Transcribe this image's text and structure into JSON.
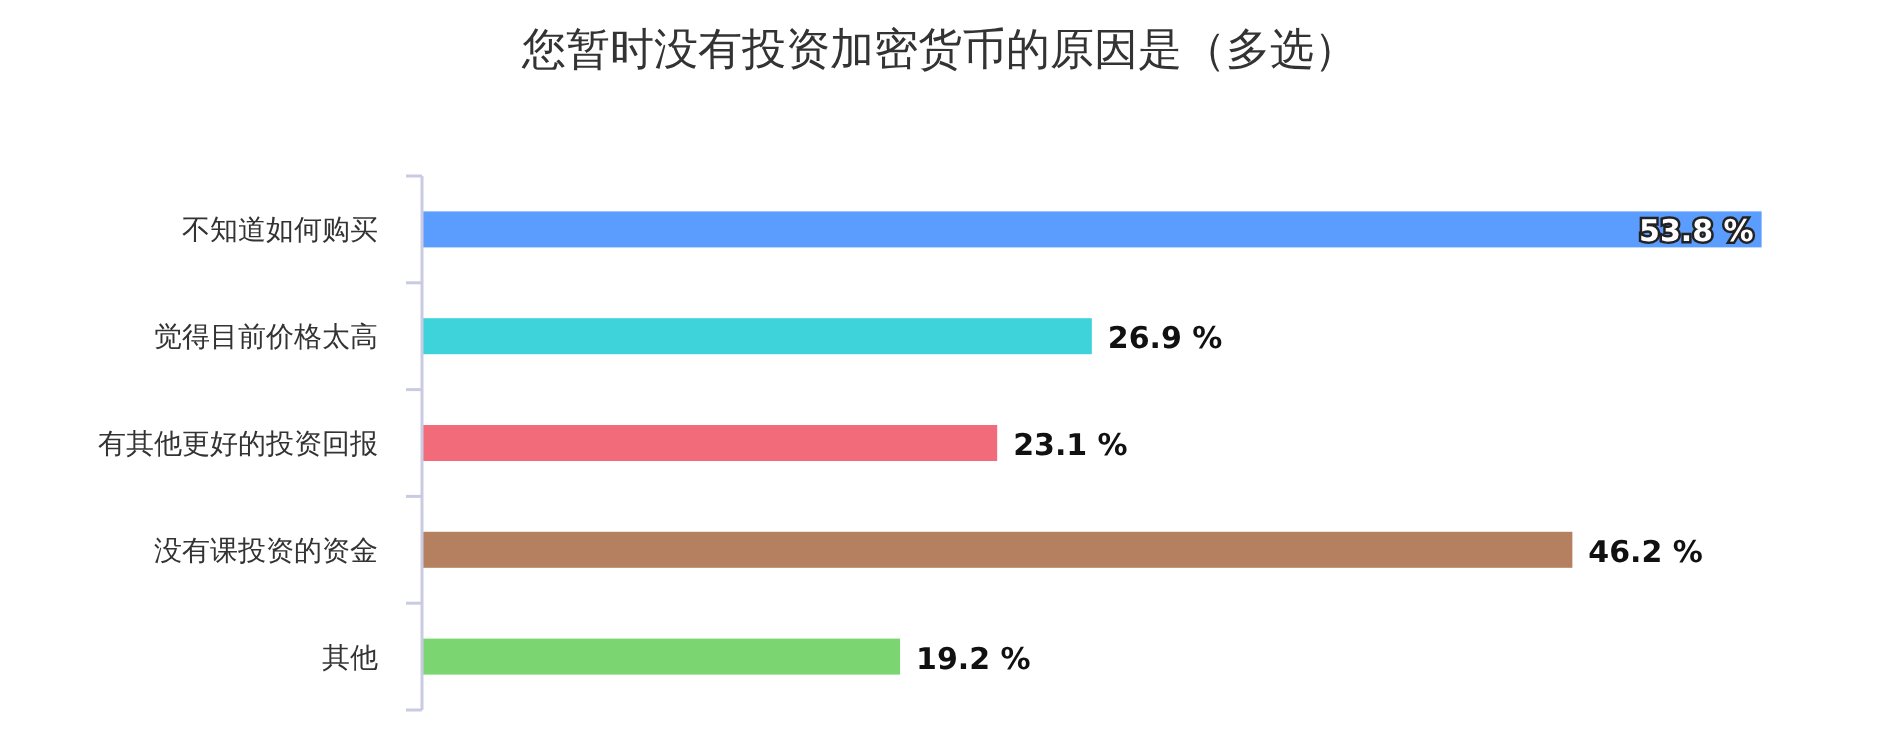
{
  "chart_data": {
    "type": "bar",
    "orientation": "horizontal",
    "title": "您暂时没有投资加密货币的原因是（多选）",
    "categories": [
      "不知道如何购买",
      "觉得目前价格太高",
      "有其他更好的投资回报",
      "没有课投资的资金",
      "其他"
    ],
    "values": [
      53.8,
      26.9,
      23.1,
      46.2,
      19.2
    ],
    "colors": [
      "#5b9cff",
      "#3ed3db",
      "#f26b7b",
      "#b5805f",
      "#7bd672"
    ],
    "value_labels": [
      "53.8 %",
      "26.9 %",
      "23.1 %",
      "46.2 %",
      "19.2 %"
    ]
  }
}
